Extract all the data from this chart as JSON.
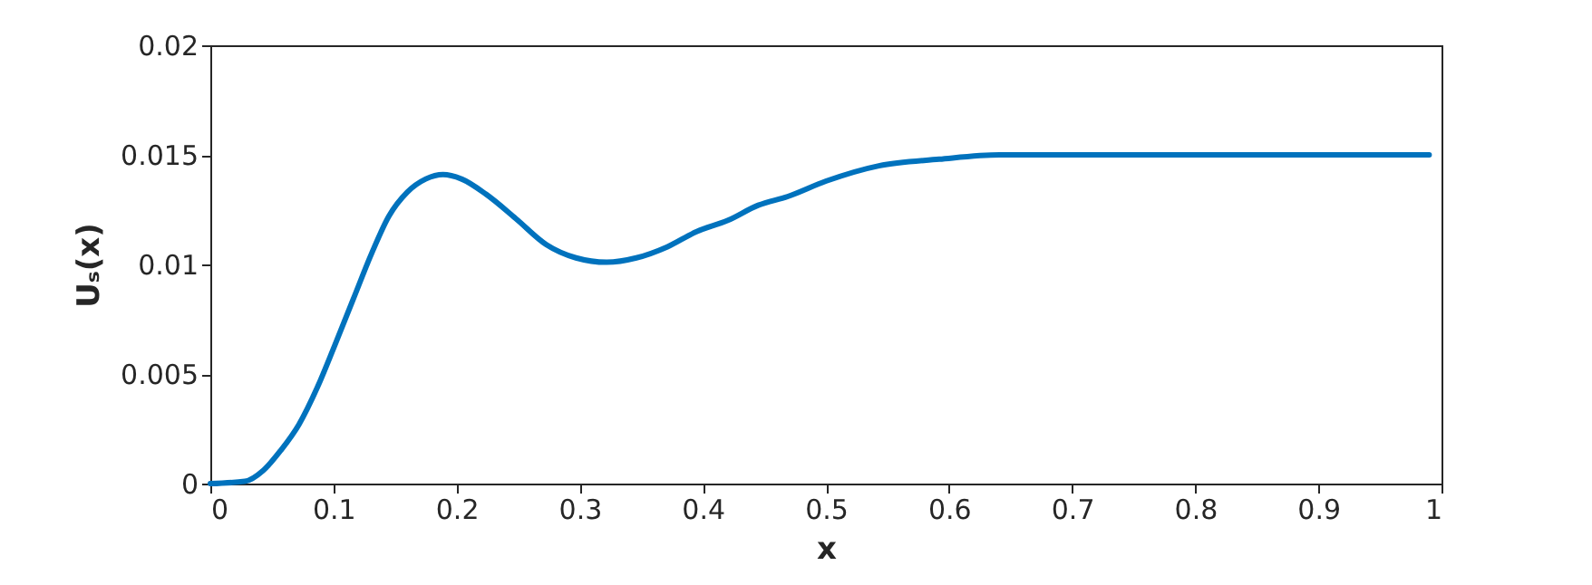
{
  "chart_data": {
    "type": "line",
    "xlabel": "x",
    "ylabel": "Uₛ(x)",
    "xlim": [
      0,
      1
    ],
    "ylim": [
      0,
      0.02
    ],
    "xticks": [
      0,
      0.1,
      0.2,
      0.3,
      0.4,
      0.5,
      0.6,
      0.7,
      0.8,
      0.9,
      1
    ],
    "yticks": [
      0,
      0.005,
      0.01,
      0.015,
      0.02
    ],
    "grid": false,
    "marker": "none",
    "line_style": "solid",
    "series": [
      {
        "color": "#0072bd",
        "x": [
          0,
          0.028,
          0.043,
          0.057,
          0.072,
          0.087,
          0.101,
          0.116,
          0.131,
          0.145,
          0.16,
          0.175,
          0.189,
          0.204,
          0.224,
          0.248,
          0.273,
          0.297,
          0.322,
          0.346,
          0.371,
          0.395,
          0.42,
          0.445,
          0.469,
          0.5,
          0.543,
          0.592,
          0.641,
          0.7,
          0.8,
          0.9,
          0.99
        ],
        "values": [
          0,
          0.0001,
          0.0006,
          0.0015,
          0.0027,
          0.0044,
          0.0063,
          0.0084,
          0.0105,
          0.0122,
          0.0133,
          0.0139,
          0.0141,
          0.0139,
          0.0132,
          0.0121,
          0.0109,
          0.0103,
          0.0101,
          0.0103,
          0.0108,
          0.0115,
          0.012,
          0.0127,
          0.0131,
          0.0138,
          0.0145,
          0.0148,
          0.015,
          0.015,
          0.015,
          0.015,
          0.015
        ]
      }
    ]
  }
}
